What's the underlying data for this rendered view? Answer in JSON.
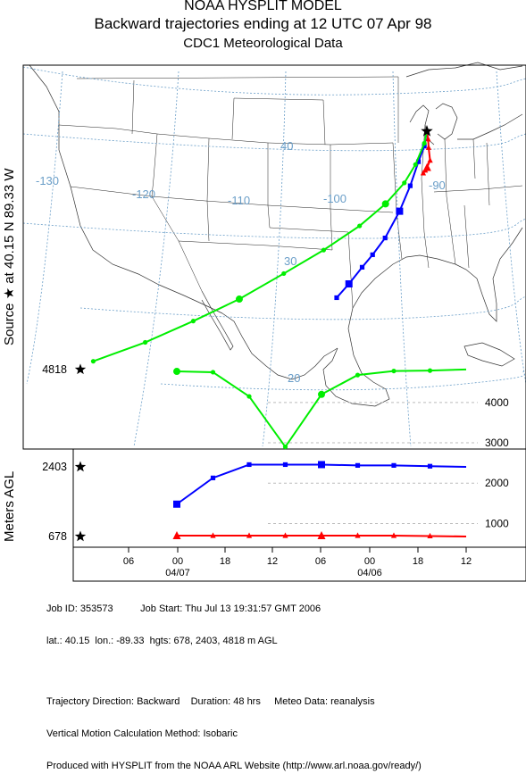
{
  "header": {
    "title": "NOAA HYSPLIT MODEL",
    "subtitle": "Backward trajectories ending at 12 UTC 07 Apr 98",
    "data_source": "CDC1 Meteorological Data"
  },
  "chart_data": [
    {
      "type": "map-trajectory",
      "title": "Backward trajectories ending at 12 UTC 07 Apr 98",
      "source_label": "Source ★ at 40.15 N 89.33 W",
      "source": {
        "lat": 40.15,
        "lon": -89.33
      },
      "longitude_labels": [
        "-130",
        "-120",
        "-110",
        "-100",
        "-90"
      ],
      "latitude_labels": [
        "40",
        "30",
        "20"
      ],
      "grid": true,
      "series": [
        {
          "name": "678",
          "color": "#ff0000",
          "marker": "triangle",
          "points": [
            [
              -89.33,
              40.15
            ],
            [
              -89.2,
              39.6
            ],
            [
              -89.15,
              39.0
            ],
            [
              -89.0,
              38.1
            ],
            [
              -89.3,
              37.6
            ],
            [
              -89.5,
              37.4
            ],
            [
              -89.7,
              37.2
            ]
          ]
        },
        {
          "name": "2403",
          "color": "#0000ff",
          "marker": "square",
          "points": [
            [
              -89.33,
              40.15
            ],
            [
              -89.6,
              39.1
            ],
            [
              -90.2,
              38.0
            ],
            [
              -91.0,
              36.3
            ],
            [
              -92.0,
              34.5
            ],
            [
              -93.3,
              32.6
            ],
            [
              -94.4,
              31.4
            ],
            [
              -95.3,
              30.5
            ],
            [
              -96.4,
              29.3
            ],
            [
              -97.4,
              28.3
            ]
          ]
        },
        {
          "name": "4818",
          "color": "#00ee00",
          "marker": "circle",
          "points": [
            [
              -89.33,
              40.15
            ],
            [
              -89.6,
              39.3
            ],
            [
              -90.5,
              37.8
            ],
            [
              -91.6,
              36.5
            ],
            [
              -93.4,
              35.0
            ],
            [
              -95.8,
              33.4
            ],
            [
              -99.0,
              31.6
            ],
            [
              -102.4,
              29.8
            ],
            [
              -106.0,
              27.8
            ],
            [
              -109.6,
              26.0
            ],
            [
              -113.2,
              24.2
            ],
            [
              -117.0,
              22.5
            ]
          ]
        }
      ]
    },
    {
      "type": "line",
      "ylabel": "Meters AGL",
      "y_tick_labels": [
        "1000",
        "2000",
        "3000",
        "4000"
      ],
      "start_heights": [
        "678",
        "2403",
        "4818"
      ],
      "x_tick_labels": [
        "06",
        "00",
        "18",
        "12",
        "06",
        "00",
        "18",
        "12"
      ],
      "date_labels": [
        "04/07",
        "04/06"
      ],
      "x_hours_before_end": [
        0,
        -6,
        -12,
        -18,
        -24,
        -30,
        -36,
        -42,
        -48
      ],
      "series": [
        {
          "name": "4818",
          "color": "#00ee00",
          "marker": "circle",
          "values": [
            4818,
            4790,
            4780,
            4680,
            4200,
            2900,
            4150,
            4750,
            4770
          ]
        },
        {
          "name": "2403",
          "color": "#0000ff",
          "marker": "square",
          "values": [
            2403,
            2420,
            2440,
            2440,
            2460,
            2460,
            2460,
            2130,
            1480
          ]
        },
        {
          "name": "678",
          "color": "#ff0000",
          "marker": "triangle",
          "values": [
            678,
            690,
            700,
            700,
            700,
            700,
            700,
            700,
            700
          ]
        }
      ]
    }
  ],
  "footer": {
    "line1": "Job ID: 353573          Job Start: Thu Jul 13 19:31:57 GMT 2006",
    "line2": "lat.: 40.15  lon.: -89.33  hgts: 678, 2403, 4818 m AGL",
    "line3": "Trajectory Direction: Backward    Duration: 48 hrs     Meteo Data: reanalysis",
    "line4": "Vertical Motion Calculation Method: Isobaric",
    "line5": "Produced with HYSPLIT from the NOAA ARL Website (http://www.arl.noaa.gov/ready/)"
  }
}
